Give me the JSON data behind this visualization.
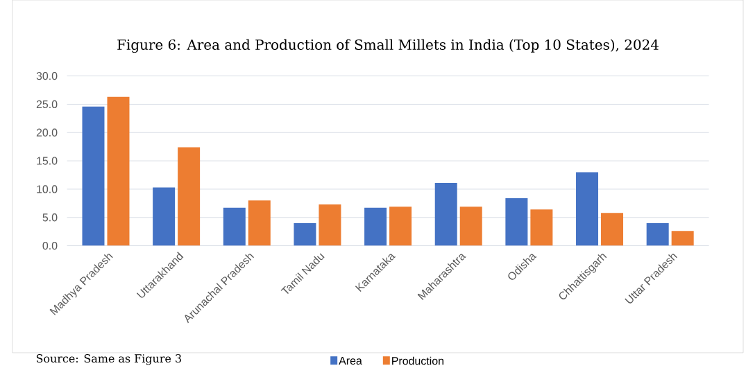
{
  "chart_data": {
    "type": "bar",
    "title": "Figure 6: Area and Production of Small Millets in India (Top 10 States), 2024",
    "categories": [
      "Madhya Pradesh",
      "Uttarakhand",
      "Arunachal Pradesh",
      "Tamil Nadu",
      "Karnataka",
      "Maharashtra",
      "Odisha",
      "Chhattisgarh",
      "Uttar Pradesh"
    ],
    "series": [
      {
        "name": "Area",
        "color": "#4472c4",
        "values": [
          24.6,
          10.3,
          6.7,
          4.0,
          6.7,
          11.1,
          8.4,
          13.0,
          4.0
        ]
      },
      {
        "name": "Production",
        "color": "#ed7d31",
        "values": [
          26.3,
          17.4,
          8.0,
          7.3,
          6.9,
          6.9,
          6.4,
          5.8,
          2.6
        ]
      }
    ],
    "ylim": [
      0,
      30
    ],
    "yticks": [
      {
        "value": 0,
        "label": "0.0"
      },
      {
        "value": 5,
        "label": "5.0"
      },
      {
        "value": 10,
        "label": "10.0"
      },
      {
        "value": 15,
        "label": "15.0"
      },
      {
        "value": 20,
        "label": "20.0"
      },
      {
        "value": 25,
        "label": "25.0"
      },
      {
        "value": 30,
        "label": "30.0"
      }
    ],
    "grid": "y",
    "legend": "bottom",
    "annotations": [
      "Source: Same as Figure 3"
    ]
  }
}
